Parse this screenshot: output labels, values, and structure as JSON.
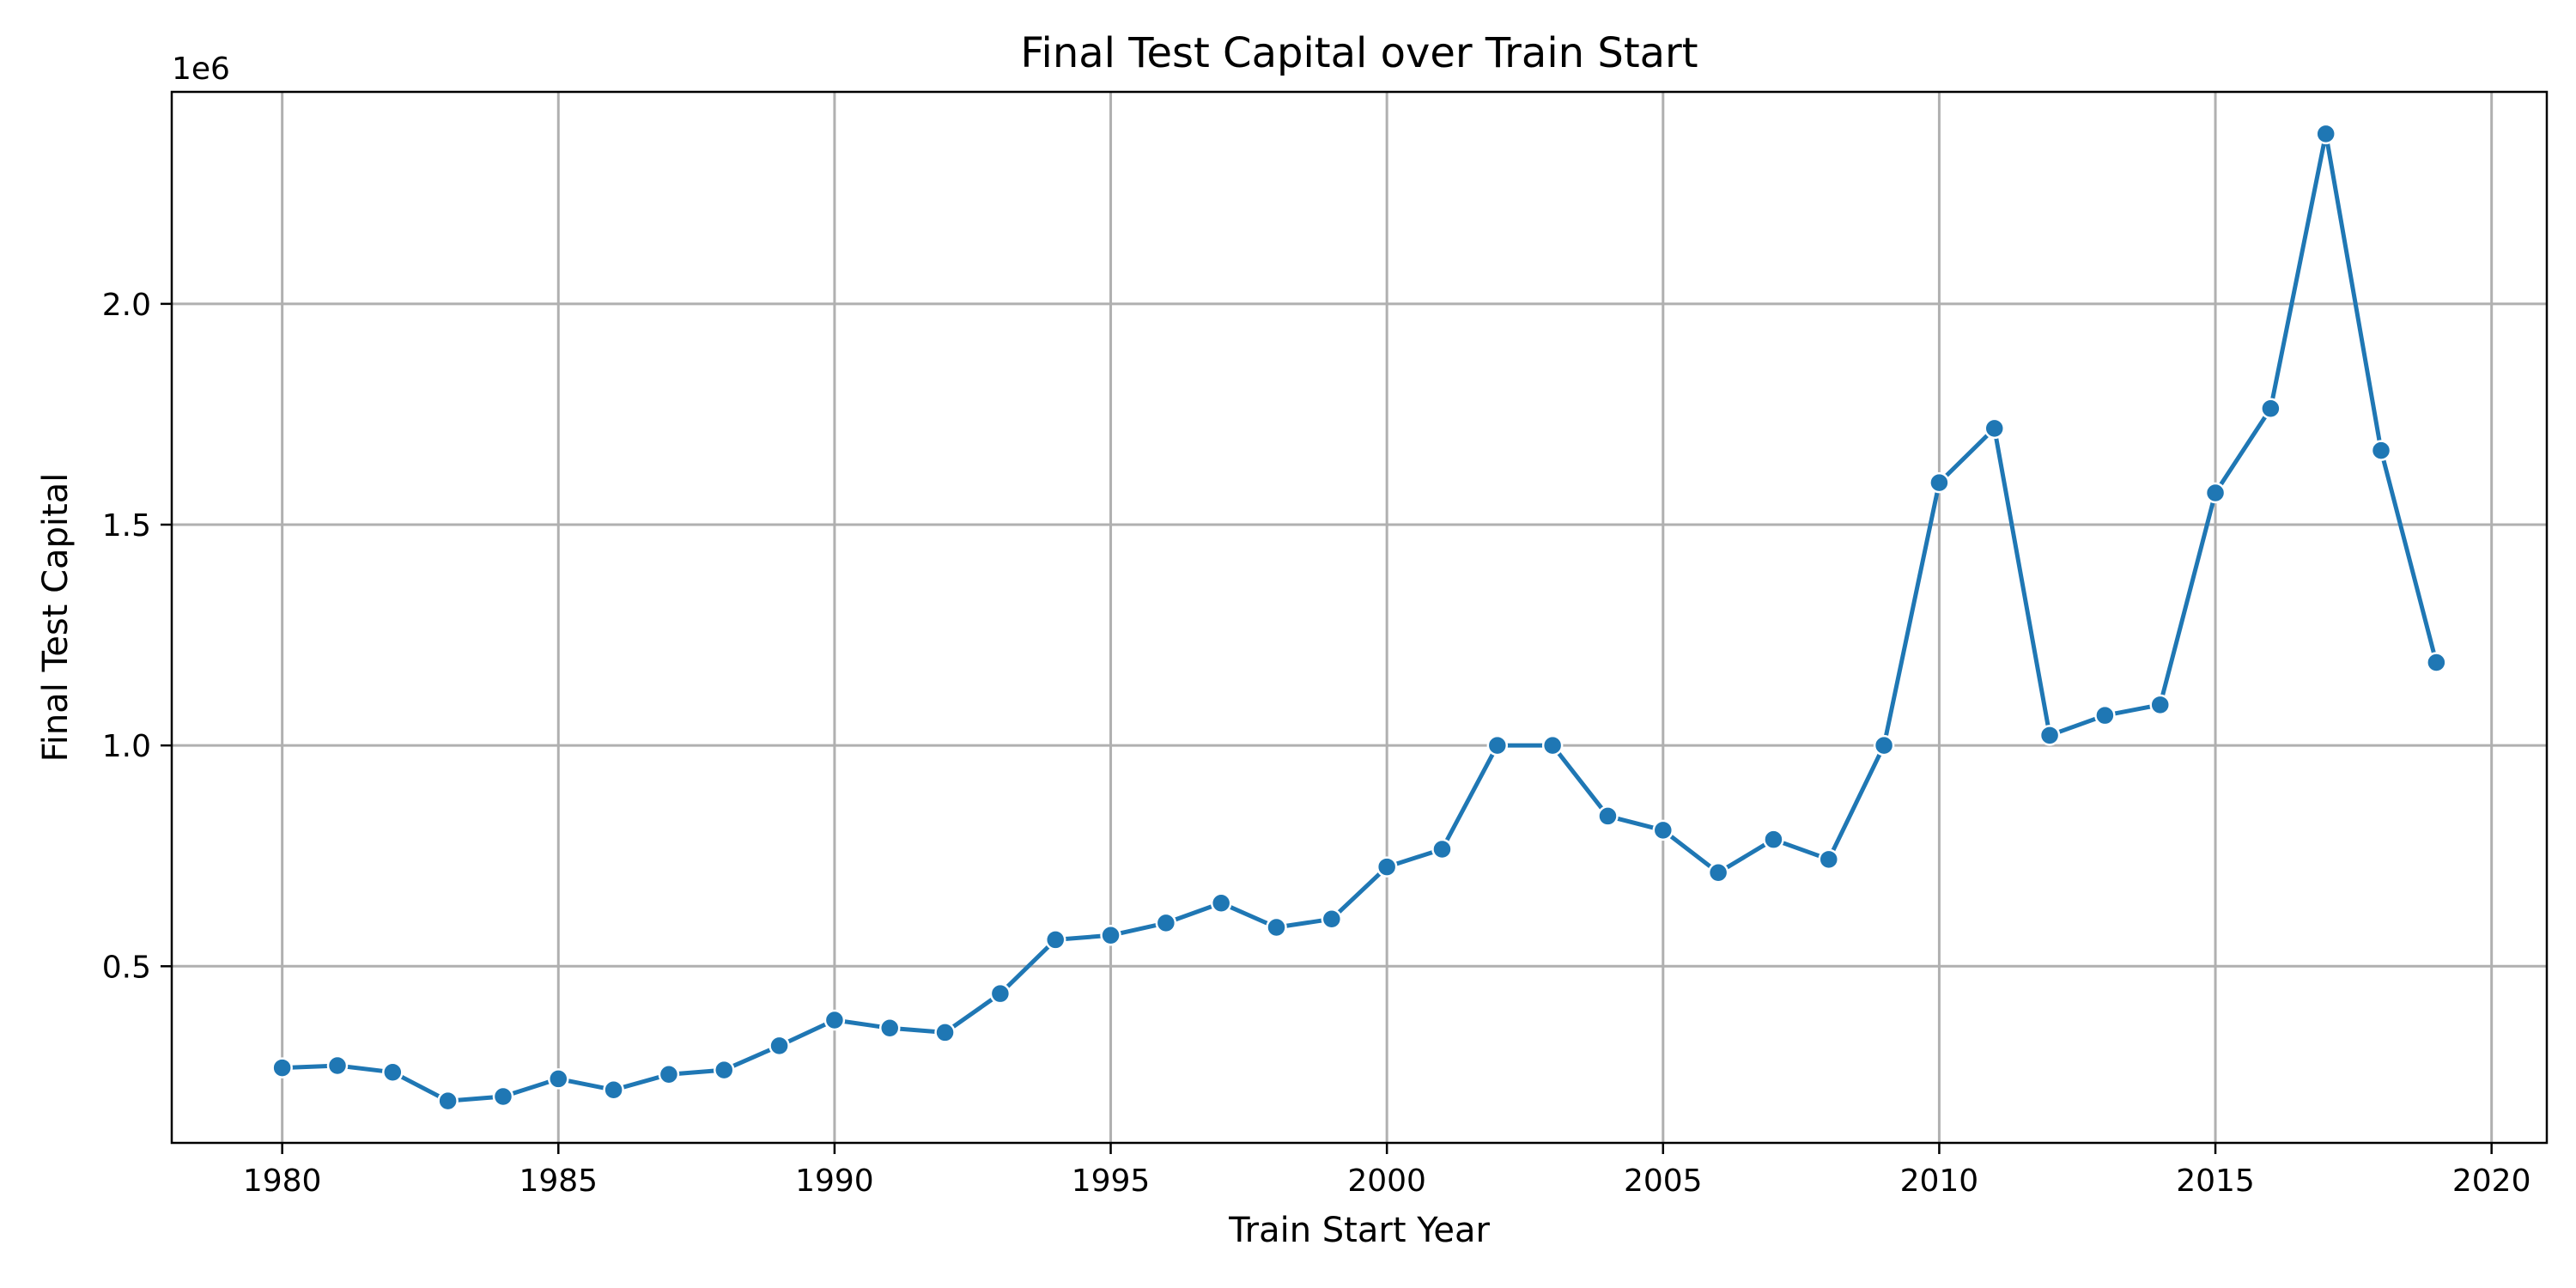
{
  "chart_data": {
    "type": "line",
    "title": "Final Test Capital over Train Start",
    "xlabel": "Train Start Year",
    "ylabel": "Final Test Capital",
    "y_offset_label": "1e6",
    "xlim": [
      1978.0,
      2021.0
    ],
    "ylim": [
      100000,
      2480000
    ],
    "x_ticks": [
      1980,
      1985,
      1990,
      1995,
      2000,
      2005,
      2010,
      2015,
      2020
    ],
    "x_tick_labels": [
      "1980",
      "1985",
      "1990",
      "1995",
      "2000",
      "2005",
      "2010",
      "2015",
      "2020"
    ],
    "y_ticks": [
      500000,
      1000000,
      1500000,
      2000000
    ],
    "y_tick_labels": [
      "0.5",
      "1.0",
      "1.5",
      "2.0"
    ],
    "grid": true,
    "marker": "circle",
    "color": "#1f77b4",
    "x": [
      1980,
      1981,
      1982,
      1983,
      1984,
      1985,
      1986,
      1987,
      1988,
      1989,
      1990,
      1991,
      1992,
      1993,
      1994,
      1995,
      1996,
      1997,
      1998,
      1999,
      2000,
      2001,
      2002,
      2003,
      2004,
      2005,
      2006,
      2007,
      2008,
      2009,
      2010,
      2011,
      2012,
      2013,
      2014,
      2015,
      2016,
      2017,
      2018,
      2019
    ],
    "series": [
      {
        "values": [
          270000,
          275000,
          260000,
          195000,
          205000,
          245000,
          220000,
          255000,
          265000,
          320000,
          378000,
          360000,
          350000,
          438000,
          560000,
          570000,
          598000,
          643000,
          588000,
          607000,
          725000,
          765000,
          1000000,
          1000000,
          840000,
          808000,
          712000,
          787000,
          742000,
          1000000,
          1595000,
          1718000,
          1023000,
          1068000,
          1092000,
          1572000,
          1763000,
          2385000,
          1668000,
          1188000
        ]
      }
    ]
  }
}
